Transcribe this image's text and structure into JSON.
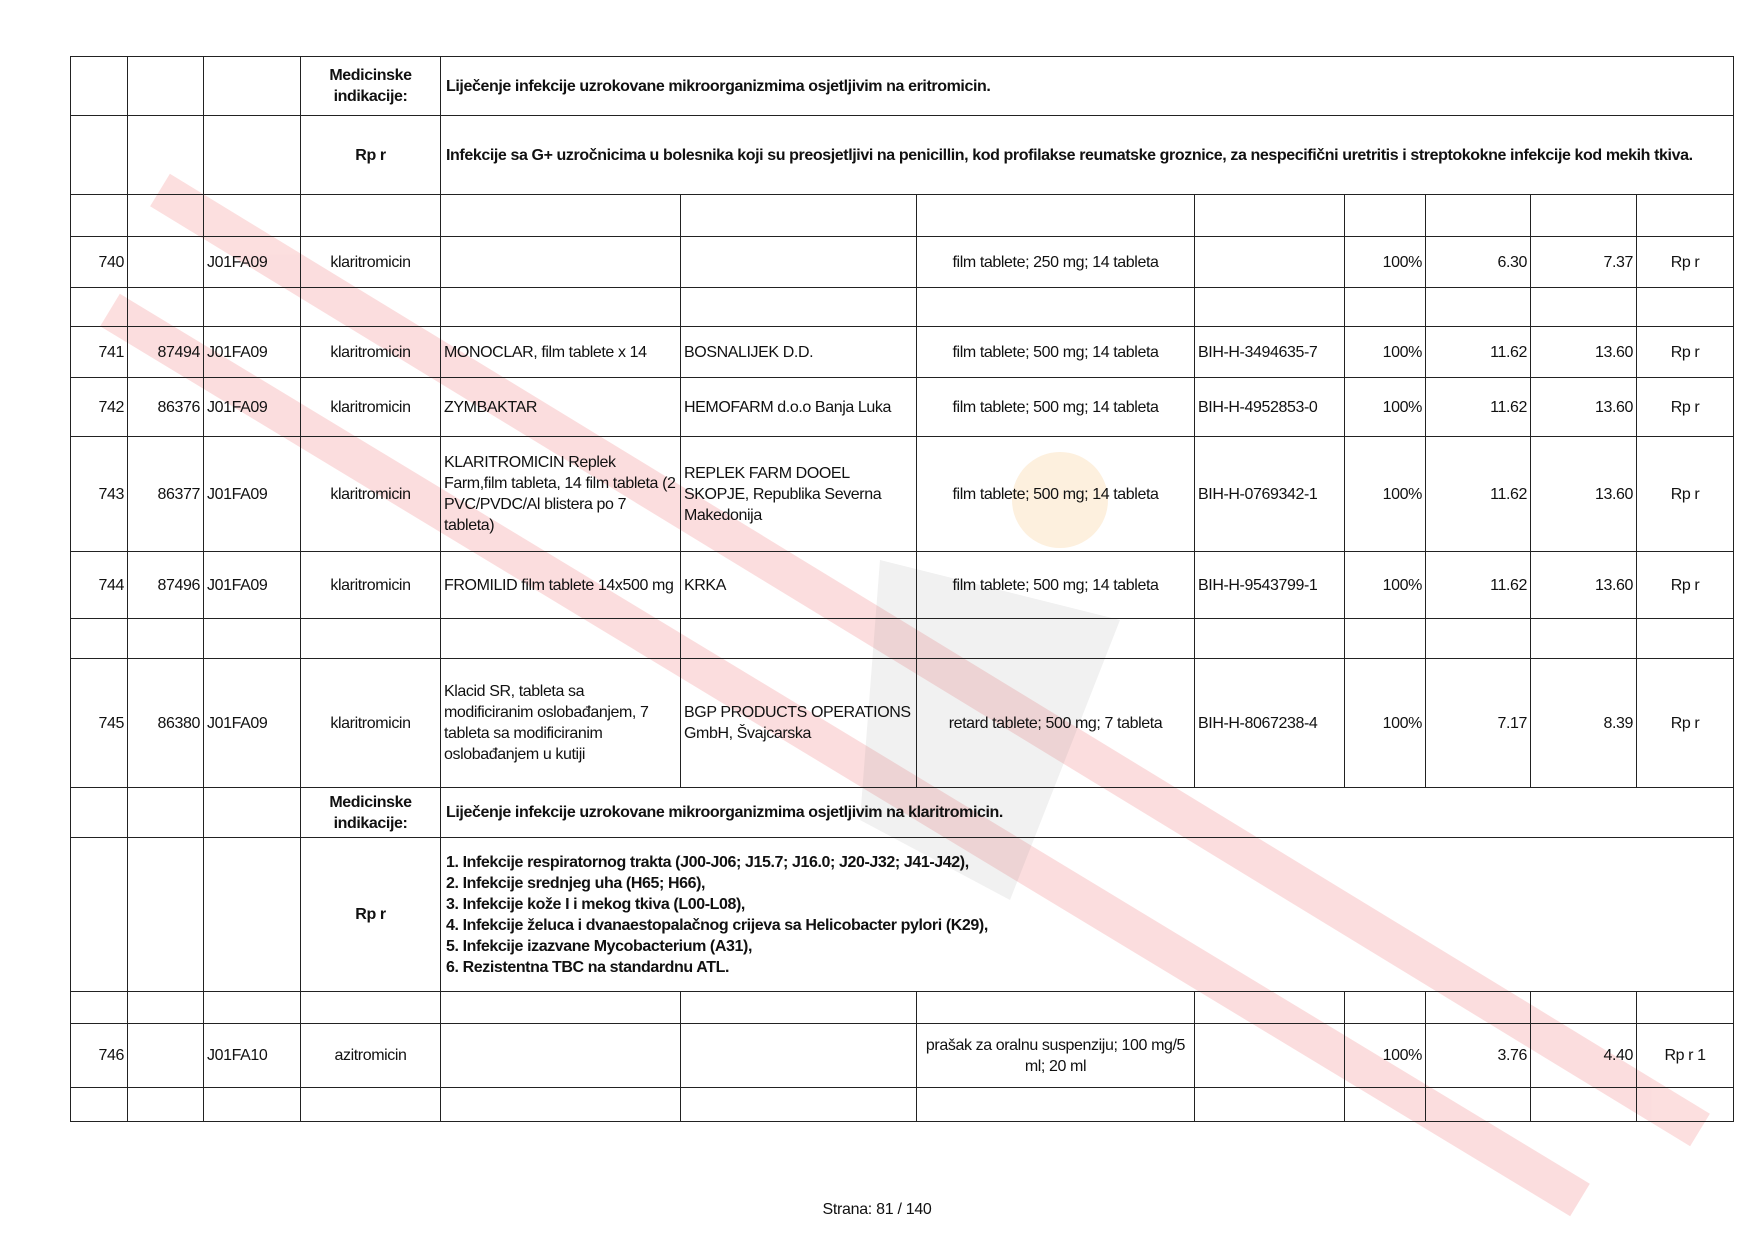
{
  "indications_label": "Medicinske indikacije:",
  "rp_label": "Rp r",
  "block1": {
    "indication": "Liječenje infekcije uzrokovane mikroorganizmima osjetljivim na eritromicin.",
    "rp_text": "Infekcije sa G+ uzročnicima u bolesnika koji su preosjetljivi na penicillin, kod profilakse reumatske groznice, za nespecifični uretritis i streptokokne infekcije kod mekih tkiva."
  },
  "rows": [
    {
      "no": "740",
      "code": "",
      "atc": "J01FA09",
      "inn": "klaritromicin",
      "name": "",
      "maker": "",
      "form": "film tablete; 250 mg; 14 tableta",
      "reg": "",
      "pct": "100%",
      "p1": "6.30",
      "p2": "7.37",
      "rx": "Rp r"
    },
    {
      "no": "741",
      "code": "87494",
      "atc": "J01FA09",
      "inn": "klaritromicin",
      "name": "MONOCLAR, film tablete x 14",
      "maker": "BOSNALIJEK D.D.",
      "form": "film tablete; 500 mg; 14 tableta",
      "reg": "BIH-H-3494635-7",
      "pct": "100%",
      "p1": "11.62",
      "p2": "13.60",
      "rx": "Rp r"
    },
    {
      "no": "742",
      "code": "86376",
      "atc": "J01FA09",
      "inn": "klaritromicin",
      "name": "ZYMBAKTAR",
      "maker": "HEMOFARM d.o.o Banja Luka",
      "form": "film tablete; 500 mg; 14 tableta",
      "reg": "BIH-H-4952853-0",
      "pct": "100%",
      "p1": "11.62",
      "p2": "13.60",
      "rx": "Rp r"
    },
    {
      "no": "743",
      "code": "86377",
      "atc": "J01FA09",
      "inn": "klaritromicin",
      "name": "KLARITROMICIN Replek Farm,film tableta,  14 film tableta (2 PVC/PVDC/Al blistera po 7 tableta)",
      "maker": "REPLEK FARM DOOEL SKOPJE, Republika Severna Makedonija",
      "form": "film tablete; 500 mg; 14 tableta",
      "reg": "BIH-H-0769342-1",
      "pct": "100%",
      "p1": "11.62",
      "p2": "13.60",
      "rx": "Rp r"
    },
    {
      "no": "744",
      "code": "87496",
      "atc": "J01FA09",
      "inn": "klaritromicin",
      "name": "FROMILID film tablete 14x500 mg",
      "maker": "KRKA",
      "form": "film tablete; 500 mg; 14 tableta",
      "reg": "BIH-H-9543799-1",
      "pct": "100%",
      "p1": "11.62",
      "p2": "13.60",
      "rx": "Rp r"
    },
    {
      "no": "745",
      "code": "86380",
      "atc": "J01FA09",
      "inn": "klaritromicin",
      "name": "Klacid SR, tableta sa modificiranim oslobađanjem, 7 tableta sa modificiranim oslobađanjem u kutiji",
      "maker": "BGP PRODUCTS OPERATIONS GmbH, Švajcarska",
      "form": "retard tablete; 500 mg; 7 tableta",
      "reg": "BIH-H-8067238-4",
      "pct": "100%",
      "p1": "7.17",
      "p2": "8.39",
      "rx": "Rp r"
    },
    {
      "no": "746",
      "code": "",
      "atc": "J01FA10",
      "inn": "azitromicin",
      "name": "",
      "maker": "",
      "form": "prašak za oralnu suspenziju; 100 mg/5 ml; 20 ml",
      "reg": "",
      "pct": "100%",
      "p1": "3.76",
      "p2": "4.40",
      "rx": "Rp r 1"
    }
  ],
  "block2": {
    "indication": "Liječenje infekcije uzrokovane mikroorganizmima osjetljivim na klaritromicin.",
    "rp_items": [
      "1. Infekcije respiratornog trakta (J00-J06; J15.7; J16.0; J20-J32; J41-J42),",
      "2. Infekcije srednjeg uha (H65; H66),",
      "3. Infekcije kože I i mekog tkiva (L00-L08),",
      "4. Infekcije želuca i dvanaestopalačnog crijeva sa Helicobacter pylori (K29),",
      "5. Infekcije izazvane Mycobacterium (A31),",
      "6. Rezistentna TBC na standardnu ATL."
    ]
  },
  "footer": "Strana: 81 / 140",
  "colors": {
    "watermark": "#e8262a",
    "border": "#222222"
  }
}
